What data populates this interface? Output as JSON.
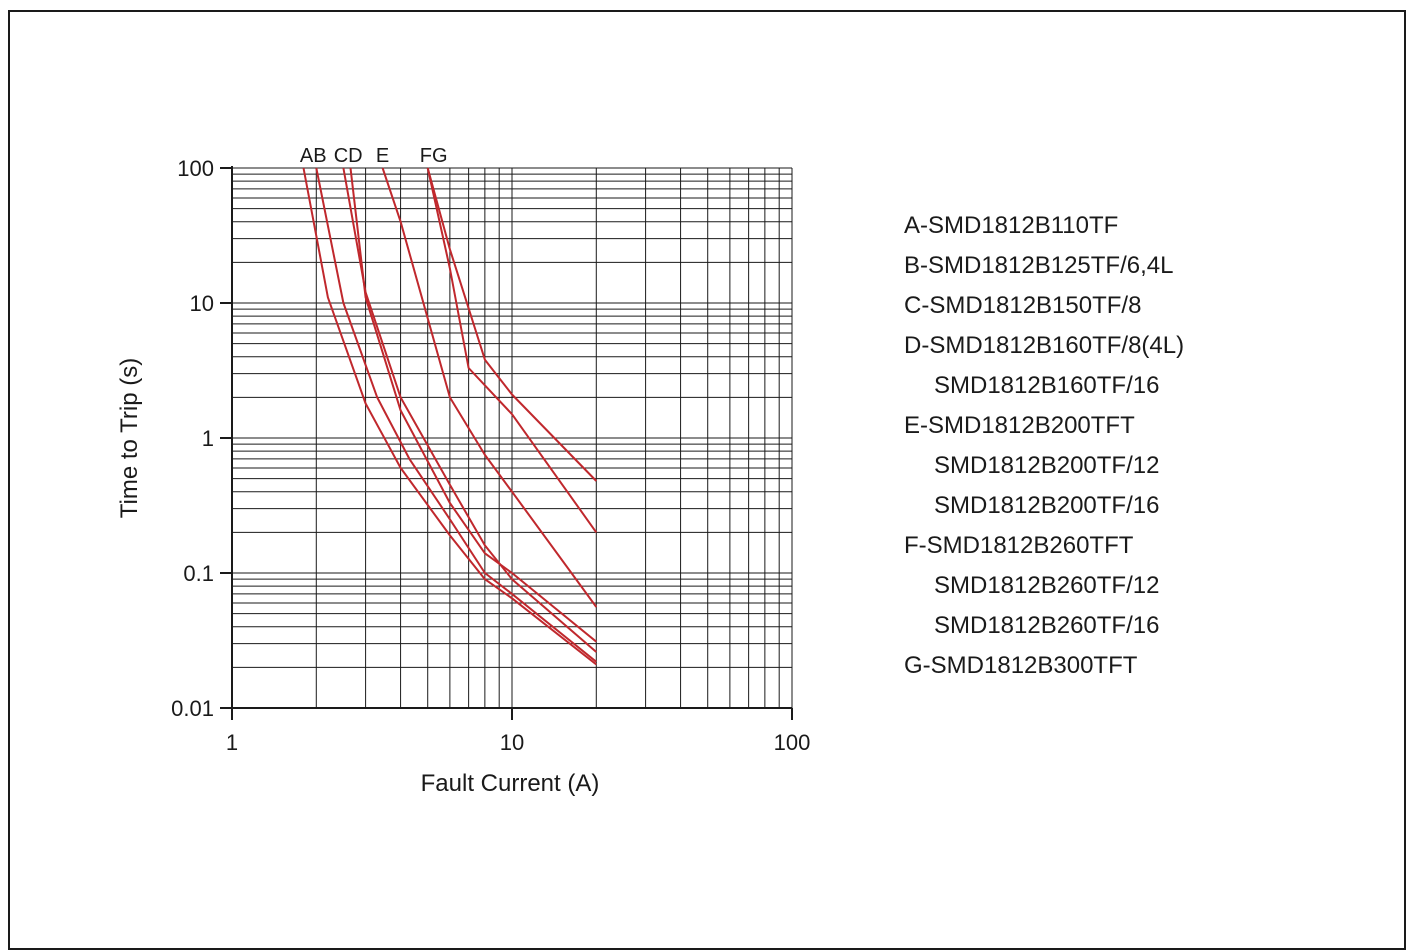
{
  "chart_data": {
    "type": "line",
    "title": "",
    "xlabel": "Fault Current (A)",
    "ylabel": "Time to Trip (s)",
    "x_scale": "log",
    "y_scale": "log",
    "xlim": [
      1,
      100
    ],
    "ylim": [
      0.01,
      100
    ],
    "x_tick_labels": [
      "1",
      "10",
      "100"
    ],
    "y_tick_labels": [
      "100",
      "10",
      "1",
      "0.1",
      "0.01"
    ],
    "grid": true,
    "line_color": "#c0282d",
    "curve_labels": [
      {
        "text": "AB",
        "x": 1.95
      },
      {
        "text": "CD",
        "x": 2.6
      },
      {
        "text": "E",
        "x": 3.45
      },
      {
        "text": "FG",
        "x": 5.25
      }
    ],
    "series": [
      {
        "name": "A",
        "points": [
          [
            1.8,
            100
          ],
          [
            2.2,
            11
          ],
          [
            3,
            1.8
          ],
          [
            4,
            0.6
          ],
          [
            6,
            0.19
          ],
          [
            8,
            0.09
          ],
          [
            10,
            0.065
          ],
          [
            20,
            0.021
          ]
        ]
      },
      {
        "name": "B",
        "points": [
          [
            2.0,
            100
          ],
          [
            2.5,
            10
          ],
          [
            3.3,
            2
          ],
          [
            4.3,
            0.7
          ],
          [
            6,
            0.25
          ],
          [
            8,
            0.1
          ],
          [
            10,
            0.07
          ],
          [
            20,
            0.022
          ]
        ]
      },
      {
        "name": "C",
        "points": [
          [
            2.5,
            100
          ],
          [
            3.0,
            12
          ],
          [
            4,
            2
          ],
          [
            6,
            0.45
          ],
          [
            8,
            0.16
          ],
          [
            10,
            0.09
          ],
          [
            20,
            0.026
          ]
        ]
      },
      {
        "name": "D",
        "points": [
          [
            2.65,
            100
          ],
          [
            3.0,
            11
          ],
          [
            4,
            1.6
          ],
          [
            6,
            0.33
          ],
          [
            8,
            0.14
          ],
          [
            10,
            0.1
          ],
          [
            20,
            0.031
          ]
        ]
      },
      {
        "name": "E",
        "points": [
          [
            3.45,
            100
          ],
          [
            4,
            40
          ],
          [
            6,
            2
          ],
          [
            8,
            0.75
          ],
          [
            10,
            0.4
          ],
          [
            20,
            0.056
          ]
        ]
      },
      {
        "name": "F",
        "points": [
          [
            5.0,
            100
          ],
          [
            6,
            25
          ],
          [
            8,
            3.8
          ],
          [
            10,
            2.1
          ],
          [
            20,
            0.48
          ]
        ]
      },
      {
        "name": "G",
        "points": [
          [
            5.0,
            100
          ],
          [
            6,
            18
          ],
          [
            7,
            3.3
          ],
          [
            10,
            1.5
          ],
          [
            20,
            0.2
          ]
        ]
      }
    ]
  },
  "legend": [
    {
      "text": "A-SMD1812B110TF",
      "indent": false
    },
    {
      "text": "B-SMD1812B125TF/6,4L",
      "indent": false
    },
    {
      "text": "C-SMD1812B150TF/8",
      "indent": false
    },
    {
      "text": "D-SMD1812B160TF/8(4L)",
      "indent": false
    },
    {
      "text": "SMD1812B160TF/16",
      "indent": true
    },
    {
      "text": "E-SMD1812B200TFT",
      "indent": false
    },
    {
      "text": "SMD1812B200TF/12",
      "indent": true
    },
    {
      "text": "SMD1812B200TF/16",
      "indent": true
    },
    {
      "text": "F-SMD1812B260TFT",
      "indent": false
    },
    {
      "text": "SMD1812B260TF/12",
      "indent": true
    },
    {
      "text": "SMD1812B260TF/16",
      "indent": true
    },
    {
      "text": "G-SMD1812B300TFT",
      "indent": false
    }
  ]
}
